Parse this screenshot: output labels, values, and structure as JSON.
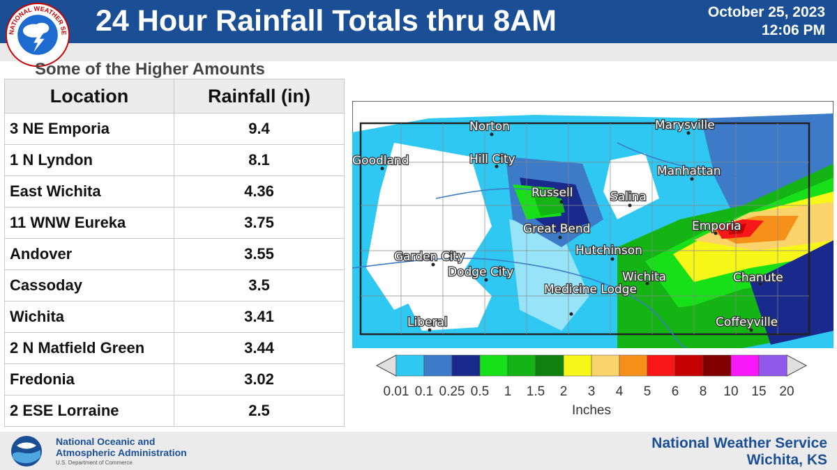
{
  "header": {
    "title": "24 Hour Rainfall Totals thru 8AM",
    "date": "October 25, 2023",
    "time": "12:06 PM",
    "logo_icon": "nws-logo-icon",
    "logo_ring_text": "NATIONAL WEATHER SERVICE",
    "bg_color": "#1a4f96"
  },
  "table": {
    "subtitle": "Some of the Higher Amounts",
    "col_location": "Location",
    "col_rainfall": "Rainfall (in)",
    "rows": [
      {
        "location": "3 NE Emporia",
        "rainfall": "9.4"
      },
      {
        "location": "1 N Lyndon",
        "rainfall": "8.1"
      },
      {
        "location": "East Wichita",
        "rainfall": "4.36"
      },
      {
        "location": "11 WNW Eureka",
        "rainfall": "3.75"
      },
      {
        "location": "Andover",
        "rainfall": "3.55"
      },
      {
        "location": "Cassoday",
        "rainfall": "3.5"
      },
      {
        "location": "Wichita",
        "rainfall": "3.41"
      },
      {
        "location": "2 N Matfield Green",
        "rainfall": "3.44"
      },
      {
        "location": "Fredonia",
        "rainfall": "3.02"
      },
      {
        "location": "2 ESE Lorraine",
        "rainfall": "2.5"
      }
    ]
  },
  "map": {
    "cities": [
      "Norton",
      "Marysville",
      "Goodland",
      "Hill City",
      "Manhattan",
      "Russell",
      "Salina",
      "Great Bend",
      "Emporia",
      "Hutchinson",
      "Garden City",
      "Dodge City",
      "Wichita",
      "Chanute",
      "Medicine Lodge",
      "Liberal",
      "Coffeyville"
    ]
  },
  "legend": {
    "ticks": [
      "0.01",
      "0.1",
      "0.25",
      "0.5",
      "1",
      "1.5",
      "2",
      "3",
      "4",
      "5",
      "6",
      "8",
      "10",
      "15",
      "20"
    ],
    "colors": [
      "#2ec8f2",
      "#3d7ac8",
      "#1a2a8c",
      "#18e018",
      "#14b414",
      "#108010",
      "#f6f618",
      "#fad36a",
      "#f69018",
      "#f61818",
      "#c40000",
      "#800000",
      "#f618f6",
      "#9058e8"
    ],
    "units": "Inches"
  },
  "footer": {
    "noaa_line1": "National Oceanic and",
    "noaa_line2": "Atmospheric Administration",
    "noaa_sub": "U.S. Department of Commerce",
    "nws_line1": "National Weather Service",
    "nws_line2": "Wichita, KS",
    "noaa_icon": "noaa-logo-icon"
  }
}
